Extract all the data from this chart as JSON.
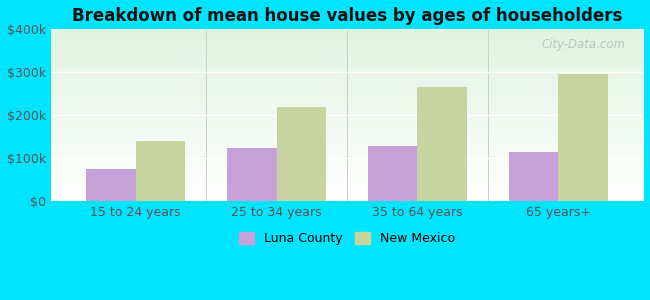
{
  "title": "Breakdown of mean house values by ages of householders",
  "categories": [
    "15 to 24 years",
    "25 to 34 years",
    "35 to 64 years",
    "65 years+"
  ],
  "luna_county": [
    75000,
    125000,
    128000,
    115000
  ],
  "new_mexico": [
    140000,
    220000,
    265000,
    295000
  ],
  "luna_color": "#c8a0d8",
  "new_mexico_color": "#c8d4a0",
  "ylim": [
    0,
    400000
  ],
  "yticks": [
    0,
    100000,
    200000,
    300000,
    400000
  ],
  "ytick_labels": [
    "$0",
    "$100k",
    "$200k",
    "$300k",
    "$400k"
  ],
  "figure_bg": "#00e5ff",
  "bar_width": 0.35,
  "watermark": "City-Data.com",
  "legend_labels": [
    "Luna County",
    "New Mexico"
  ]
}
